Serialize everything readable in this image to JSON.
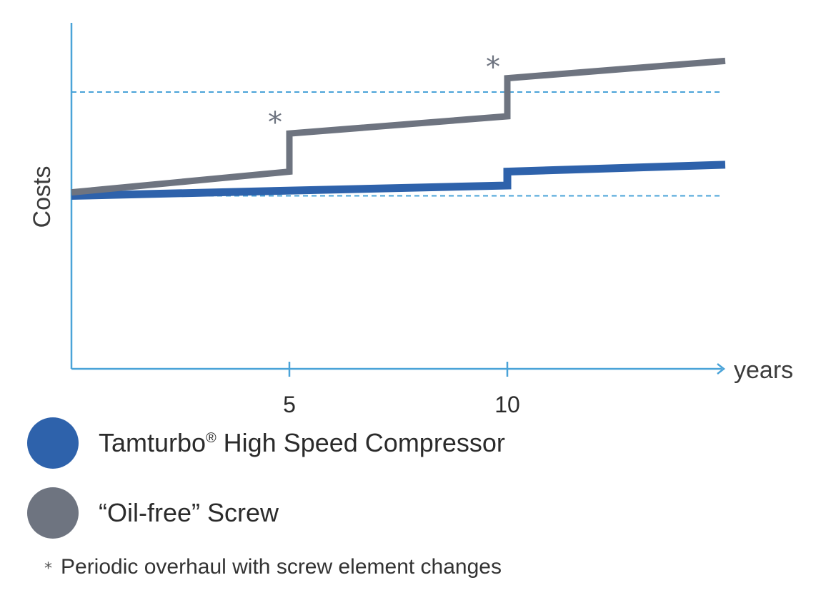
{
  "chart_data": {
    "type": "line",
    "xlabel": "years",
    "ylabel": "Costs",
    "xlim": [
      0,
      15
    ],
    "ylim": [
      0,
      10
    ],
    "xticks": [
      "5",
      "10"
    ],
    "xtick_values": [
      5,
      10
    ],
    "reference_lines_y": [
      5.0,
      8.0
    ],
    "grid": false,
    "legend_position": "bottom",
    "series": [
      {
        "name": "Tamturbo® High Speed Compressor",
        "color": "#2e62ab",
        "points": [
          [
            0,
            5.0
          ],
          [
            10,
            5.3
          ],
          [
            10,
            5.7
          ],
          [
            15,
            5.9
          ]
        ]
      },
      {
        "name": "“Oil-free” Screw",
        "color": "#6e7480",
        "points": [
          [
            0,
            5.1
          ],
          [
            5,
            5.7
          ],
          [
            5,
            6.8
          ],
          [
            10,
            7.3
          ],
          [
            10,
            8.4
          ],
          [
            15,
            8.9
          ]
        ]
      }
    ],
    "annotations": [
      {
        "symbol": "*",
        "x": 5
      },
      {
        "symbol": "*",
        "x": 10
      }
    ]
  },
  "legend": {
    "items": [
      {
        "label_main": "Tamturbo",
        "label_sup": "®",
        "label_rest": " High Speed Compressor",
        "color": "#2e62ab"
      },
      {
        "label_main": "“Oil-free” Screw",
        "label_sup": "",
        "label_rest": "",
        "color": "#6e7480"
      }
    ]
  },
  "footnote": {
    "symbol": "*",
    "text": "Periodic overhaul with screw element changes"
  }
}
